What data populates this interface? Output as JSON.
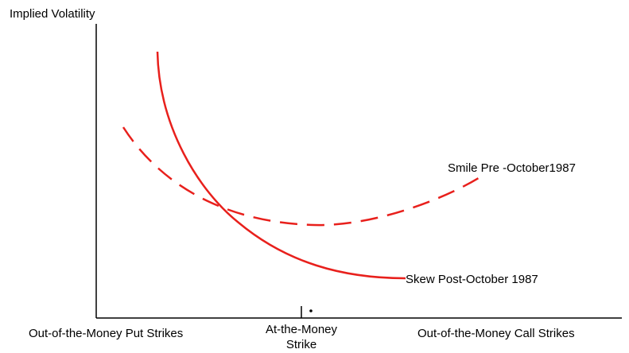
{
  "axes": {
    "y_label": "Implied Volatility",
    "x_left_label": "Out-of-the-Money Put Strikes",
    "x_center_label": [
      "At-the-Money",
      "Strike"
    ],
    "x_right_label": "Out-of-the-Money Call Strikes"
  },
  "curves": {
    "smile": {
      "label": "Smile Pre -October1987"
    },
    "skew": {
      "label": "Skew Post-October 1987"
    }
  }
}
